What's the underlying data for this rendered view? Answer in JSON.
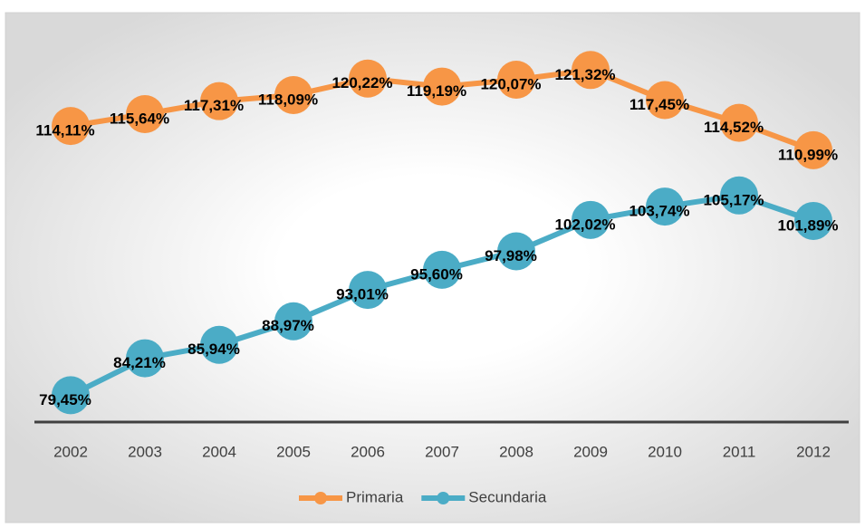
{
  "chart_data": {
    "type": "line",
    "categories": [
      "2002",
      "2003",
      "2004",
      "2005",
      "2006",
      "2007",
      "2008",
      "2009",
      "2010",
      "2011",
      "2012"
    ],
    "series": [
      {
        "name": "Primaria",
        "color": "#f79646",
        "values": [
          114.11,
          115.64,
          117.31,
          118.09,
          120.22,
          119.19,
          120.07,
          121.32,
          117.45,
          114.52,
          110.99
        ],
        "value_labels": [
          "114,11%",
          "115,64%",
          "117,31%",
          "118,09%",
          "120,22%",
          "119,19%",
          "120,07%",
          "121,32%",
          "117,45%",
          "114,52%",
          "110,99%"
        ]
      },
      {
        "name": "Secundaria",
        "color": "#4bacc6",
        "values": [
          79.45,
          84.21,
          85.94,
          88.97,
          93.01,
          95.6,
          97.98,
          102.02,
          103.74,
          105.17,
          101.89
        ],
        "value_labels": [
          "79,45%",
          "84,21%",
          "85,94%",
          "88,97%",
          "93,01%",
          "95,60%",
          "97,98%",
          "102,02%",
          "103,74%",
          "105,17%",
          "101,89%"
        ]
      }
    ],
    "ylim": [
      76,
      128
    ],
    "grid": false,
    "legend": "bottom"
  }
}
